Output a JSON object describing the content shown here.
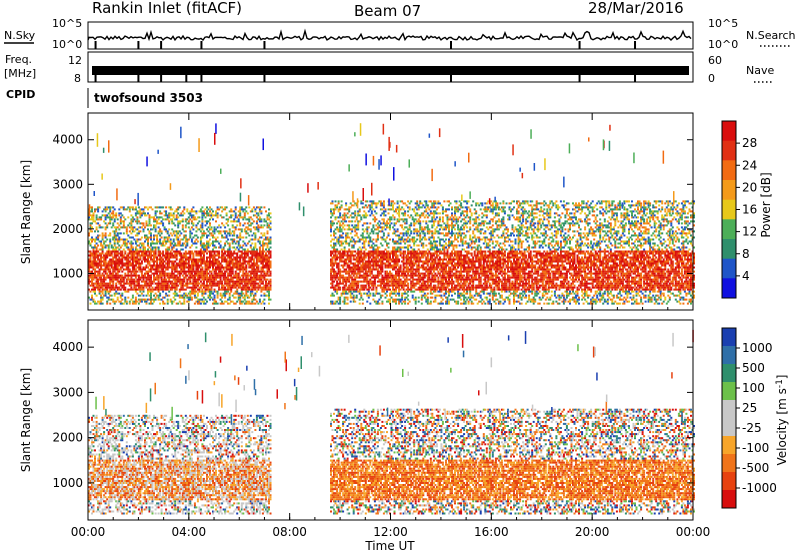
{
  "header": {
    "title": "Rankin Inlet (fitACF)",
    "beam": "Beam 07",
    "date": "28/Mar/2016"
  },
  "noise_panel": {
    "left_label": "N.Sky",
    "right_label": "N.Search",
    "ticks": [
      "10^5",
      "10^0"
    ]
  },
  "freq_panel": {
    "label_top": "Freq.",
    "label_bottom": "[MHz]",
    "left_ticks": [
      "12",
      "8"
    ],
    "right_ticks": [
      "60",
      "0"
    ],
    "right_label": "Nave"
  },
  "cpid_panel": {
    "label": "CPID",
    "program": "twofsound 3503"
  },
  "colors": {
    "power": [
      "#1010e0",
      "#1f55c8",
      "#2f8f6c",
      "#4cae58",
      "#e7c81b",
      "#f49a1a",
      "#f26b12",
      "#e13014",
      "#d90d0d"
    ],
    "velocity": [
      "#d80e0e",
      "#e7420f",
      "#f0741a",
      "#f7a52a",
      "#c8c8c8",
      "#c8c8c8",
      "#6cc04a",
      "#2f8f6c",
      "#2f6fa8",
      "#1a3fb0"
    ]
  },
  "chart_data": [
    {
      "type": "heatmap",
      "title": "",
      "xlabel": "",
      "ylabel": "Slant Range [km]",
      "x_ticks": [
        "00:00",
        "04:00",
        "08:00",
        "12:00",
        "16:00",
        "20:00",
        "00:00"
      ],
      "y_ticks": [
        1000,
        2000,
        3000,
        4000
      ],
      "ylim": [
        180,
        4600
      ],
      "colorbar": {
        "label": "Power [dB]",
        "ticks": [
          28,
          24,
          20,
          16,
          12,
          8,
          4
        ],
        "range": [
          0,
          30
        ]
      },
      "echo_regions": [
        {
          "t_start": 0.0,
          "t_end": 7.2,
          "range_low": 300,
          "range_high": 2500,
          "typical": "15-28 dB"
        },
        {
          "t_start": 9.6,
          "t_end": 24.0,
          "range_low": 300,
          "range_high": 2600,
          "typical": "12-28 dB"
        }
      ]
    },
    {
      "type": "heatmap",
      "title": "",
      "xlabel": "Time UT",
      "ylabel": "Slant Range [km]",
      "x_ticks": [
        "00:00",
        "04:00",
        "08:00",
        "12:00",
        "16:00",
        "20:00",
        "00:00"
      ],
      "y_ticks": [
        1000,
        2000,
        3000,
        4000
      ],
      "ylim": [
        180,
        4600
      ],
      "colorbar": {
        "label": "Velocity [m s^-1]",
        "ticks": [
          1000,
          500,
          100,
          25,
          -25,
          -100,
          -500,
          -1000
        ],
        "range": [
          -1000,
          1000
        ]
      },
      "echo_regions": [
        {
          "t_start": 0.0,
          "t_end": 7.2,
          "range_low": 300,
          "range_high": 2500,
          "typical": "-500 to 500 m/s"
        },
        {
          "t_start": 9.6,
          "t_end": 24.0,
          "range_low": 300,
          "range_high": 2600,
          "typical": "-500 to -100 m/s"
        }
      ]
    }
  ]
}
